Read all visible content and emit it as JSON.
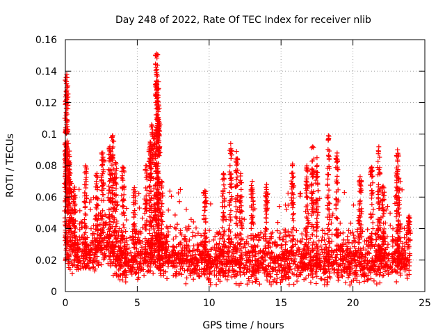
{
  "chart_data": {
    "type": "scatter",
    "title": "Day 248 of 2022, Rate Of TEC Index for receiver nlib",
    "xlabel": "GPS time / hours",
    "ylabel": "ROTI / TECUs",
    "xlim": [
      0,
      25
    ],
    "ylim": [
      0,
      0.16
    ],
    "x_ticks": [
      0,
      5,
      10,
      15,
      20,
      25
    ],
    "y_ticks": [
      0,
      0.02,
      0.04,
      0.06,
      0.08,
      0.1,
      0.12,
      0.14,
      0.16
    ],
    "x_tick_labels": [
      "0",
      "5",
      "10",
      "15",
      "20",
      "25"
    ],
    "y_tick_labels": [
      "0",
      "0.02",
      "0.04",
      "0.06",
      "0.08",
      "0.1",
      "0.12",
      "0.14",
      "0.16"
    ],
    "grid": true,
    "marker": "+",
    "color": "#ff0000",
    "x_extent": [
      0,
      24
    ],
    "baseline": [
      [
        0,
        0.026
      ],
      [
        1,
        0.024
      ],
      [
        2,
        0.023
      ],
      [
        2.5,
        0.03
      ],
      [
        3,
        0.028
      ],
      [
        4,
        0.019
      ],
      [
        5,
        0.018
      ],
      [
        6,
        0.024
      ],
      [
        7,
        0.022
      ],
      [
        8,
        0.021
      ],
      [
        9,
        0.019
      ],
      [
        10,
        0.018
      ],
      [
        11,
        0.019
      ],
      [
        12,
        0.018
      ],
      [
        13,
        0.017
      ],
      [
        14,
        0.018
      ],
      [
        15,
        0.017
      ],
      [
        16,
        0.019
      ],
      [
        17,
        0.018
      ],
      [
        18,
        0.017
      ],
      [
        19,
        0.018
      ],
      [
        20,
        0.019
      ],
      [
        21,
        0.018
      ],
      [
        22,
        0.019
      ],
      [
        23,
        0.021
      ],
      [
        24,
        0.02
      ]
    ],
    "spikes": [
      {
        "x": 0.05,
        "y": 0.136
      },
      {
        "x": 0.1,
        "y": 0.138
      },
      {
        "x": 0.03,
        "y": 0.104
      },
      {
        "x": 0.2,
        "y": 0.094
      },
      {
        "x": 0.25,
        "y": 0.083
      },
      {
        "x": 0.35,
        "y": 0.07
      },
      {
        "x": 0.6,
        "y": 0.065
      },
      {
        "x": 1.4,
        "y": 0.08
      },
      {
        "x": 2.2,
        "y": 0.075
      },
      {
        "x": 2.6,
        "y": 0.088
      },
      {
        "x": 3.1,
        "y": 0.092
      },
      {
        "x": 3.3,
        "y": 0.099
      },
      {
        "x": 3.5,
        "y": 0.082
      },
      {
        "x": 4.0,
        "y": 0.079
      },
      {
        "x": 4.8,
        "y": 0.066
      },
      {
        "x": 5.6,
        "y": 0.08
      },
      {
        "x": 5.9,
        "y": 0.095
      },
      {
        "x": 6.0,
        "y": 0.106
      },
      {
        "x": 6.2,
        "y": 0.1
      },
      {
        "x": 6.35,
        "y": 0.151
      },
      {
        "x": 6.4,
        "y": 0.137
      },
      {
        "x": 6.45,
        "y": 0.129
      },
      {
        "x": 6.5,
        "y": 0.118
      },
      {
        "x": 6.7,
        "y": 0.07
      },
      {
        "x": 9.7,
        "y": 0.064
      },
      {
        "x": 11.0,
        "y": 0.075
      },
      {
        "x": 11.5,
        "y": 0.094
      },
      {
        "x": 11.9,
        "y": 0.089
      },
      {
        "x": 12.2,
        "y": 0.075
      },
      {
        "x": 13.0,
        "y": 0.07
      },
      {
        "x": 14.0,
        "y": 0.068
      },
      {
        "x": 15.8,
        "y": 0.081
      },
      {
        "x": 16.8,
        "y": 0.08
      },
      {
        "x": 17.2,
        "y": 0.092
      },
      {
        "x": 17.5,
        "y": 0.085
      },
      {
        "x": 18.3,
        "y": 0.099
      },
      {
        "x": 18.9,
        "y": 0.088
      },
      {
        "x": 20.5,
        "y": 0.073
      },
      {
        "x": 21.3,
        "y": 0.079
      },
      {
        "x": 21.8,
        "y": 0.092
      },
      {
        "x": 22.1,
        "y": 0.067
      },
      {
        "x": 23.1,
        "y": 0.09
      },
      {
        "x": 23.2,
        "y": 0.072
      },
      {
        "x": 23.9,
        "y": 0.048
      }
    ]
  }
}
